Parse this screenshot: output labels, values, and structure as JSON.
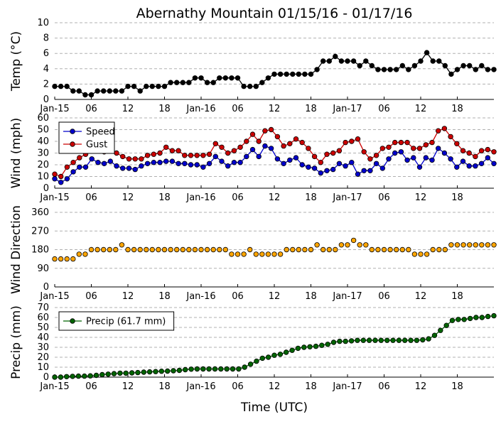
{
  "figure": {
    "title": "Abernathy Mountain 01/15/16 - 01/17/16",
    "xlabel": "Time (UTC)",
    "x_tick_labels": [
      "Jan-15",
      "06",
      "12",
      "18",
      "Jan-16",
      "06",
      "12",
      "18",
      "Jan-17",
      "06",
      "12",
      "18"
    ]
  },
  "colors": {
    "temp": "#000000",
    "speed": "#0000cc",
    "gust": "#cc0000",
    "direction": "#ffa500",
    "precip": "#006400",
    "grid": "#b0b0b0"
  },
  "chart_data": [
    {
      "type": "line",
      "ylabel": "Temp (°C)",
      "ylim": [
        0,
        10
      ],
      "yticks": [
        0,
        2,
        4,
        6,
        8,
        10
      ],
      "x_hours_from_Jan-15_00UTC": [
        0,
        72
      ],
      "grid": true,
      "series": [
        {
          "values": [
            1.7,
            1.7,
            1.7,
            1.1,
            1.1,
            0.6,
            0.6,
            1.1,
            1.1,
            1.1,
            1.1,
            1.1,
            1.7,
            1.7,
            1.1,
            1.7,
            1.7,
            1.7,
            1.7,
            2.2,
            2.2,
            2.2,
            2.2,
            2.8,
            2.8,
            2.2,
            2.2,
            2.8,
            2.8,
            2.8,
            2.8,
            1.7,
            1.7,
            1.7,
            2.2,
            2.8,
            3.3,
            3.3,
            3.3,
            3.3,
            3.3,
            3.3,
            3.3,
            3.9,
            5.0,
            5.0,
            5.6,
            5.0,
            5.0,
            5.0,
            4.4,
            5.0,
            4.4,
            3.9,
            3.9,
            3.9,
            3.9,
            4.4,
            3.9,
            4.4,
            5.0,
            6.1,
            5.0,
            5.0,
            4.4,
            3.3,
            3.9,
            4.4,
            4.4,
            3.9,
            4.4,
            3.9,
            3.9
          ]
        }
      ]
    },
    {
      "type": "line",
      "ylabel": "Wind (mph)",
      "ylim": [
        0,
        60
      ],
      "yticks": [
        0,
        10,
        20,
        30,
        40,
        50,
        60
      ],
      "legend": "top-left",
      "grid": true,
      "series": [
        {
          "name": "Speed",
          "values": [
            8,
            5,
            8,
            14,
            18,
            18,
            25,
            22,
            21,
            23,
            19,
            17,
            17,
            16,
            19,
            21,
            22,
            22,
            23,
            23,
            21,
            21,
            20,
            20,
            18,
            21,
            27,
            23,
            19,
            22,
            22,
            27,
            33,
            27,
            36,
            34,
            25,
            21,
            24,
            26,
            20,
            18,
            17,
            13,
            15,
            16,
            21,
            19,
            22,
            12,
            15,
            15,
            21,
            17,
            25,
            30,
            31,
            24,
            26,
            18,
            26,
            24,
            34,
            30,
            25,
            18,
            23,
            19,
            19,
            21,
            26,
            21
          ]
        },
        {
          "name": "Gust",
          "values": [
            12,
            10,
            18,
            22,
            26,
            29,
            32,
            33,
            31,
            32,
            30,
            27,
            25,
            25,
            25,
            28,
            29,
            30,
            35,
            32,
            32,
            28,
            28,
            28,
            28,
            29,
            38,
            35,
            30,
            32,
            35,
            40,
            46,
            40,
            49,
            50,
            44,
            36,
            38,
            42,
            39,
            34,
            27,
            22,
            29,
            30,
            32,
            39,
            40,
            42,
            31,
            25,
            28,
            34,
            35,
            39,
            39,
            39,
            34,
            34,
            37,
            39,
            49,
            51,
            44,
            38,
            32,
            30,
            27,
            32,
            33,
            31
          ]
        }
      ]
    },
    {
      "type": "scatter",
      "ylabel": "Wind Direction",
      "ylim": [
        0,
        360
      ],
      "yticks": [
        0,
        90,
        180,
        270,
        360
      ],
      "grid": true,
      "series": [
        {
          "values": [
            135,
            135,
            135,
            135,
            158,
            158,
            180,
            180,
            180,
            180,
            180,
            203,
            180,
            180,
            180,
            180,
            180,
            180,
            180,
            180,
            180,
            180,
            180,
            180,
            180,
            180,
            180,
            180,
            180,
            158,
            158,
            158,
            180,
            158,
            158,
            158,
            158,
            158,
            180,
            180,
            180,
            180,
            180,
            203,
            180,
            180,
            180,
            203,
            203,
            225,
            203,
            203,
            180,
            180,
            180,
            180,
            180,
            180,
            180,
            158,
            158,
            158,
            180,
            180,
            180,
            203,
            203,
            203,
            203,
            203,
            203,
            203,
            203
          ]
        }
      ]
    },
    {
      "type": "line",
      "ylabel": "Precip (mm)",
      "ylim": [
        0,
        70
      ],
      "yticks": [
        0,
        10,
        20,
        30,
        40,
        50,
        60,
        70
      ],
      "legend": "top-left",
      "grid": true,
      "series": [
        {
          "name": "Precip (61.7 mm)",
          "values": [
            0,
            0,
            0.5,
            0.8,
            1,
            1,
            1.3,
            1.8,
            2.5,
            3,
            3.5,
            4,
            4,
            4.3,
            4.6,
            5,
            5.3,
            5.6,
            5.9,
            6.1,
            6.4,
            6.8,
            7.5,
            8,
            8.2,
            8.2,
            8.2,
            8.2,
            8.2,
            8.2,
            8.2,
            8.2,
            10,
            13,
            16,
            19,
            20,
            22,
            23,
            25,
            27,
            29,
            30,
            30.5,
            31,
            32,
            33,
            35,
            36,
            36,
            36.5,
            37,
            37,
            37,
            37,
            37,
            37,
            37,
            37,
            37,
            37,
            37,
            37.5,
            38.5,
            42,
            47,
            52,
            57,
            58,
            58,
            59,
            60,
            60,
            61,
            61.7
          ]
        }
      ]
    }
  ]
}
